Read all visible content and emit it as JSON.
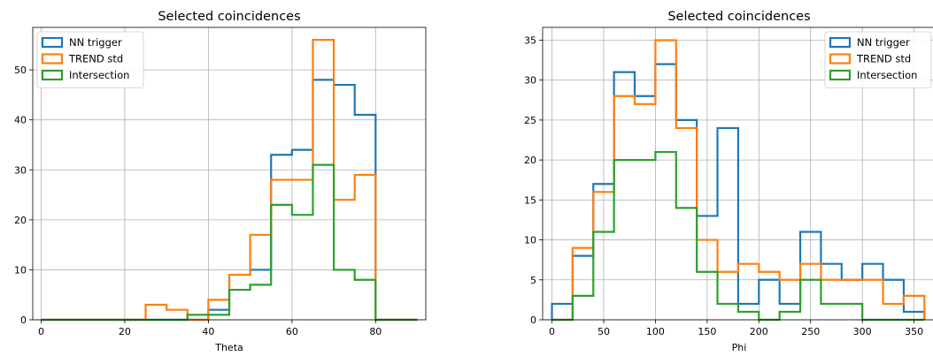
{
  "chart_data": [
    {
      "type": "histogram",
      "title": "Selected coincidences",
      "xlabel": "Theta",
      "ylabel": "",
      "xlim": [
        -2,
        92
      ],
      "ylim": [
        0,
        58.5
      ],
      "xticks": [
        0,
        20,
        40,
        60,
        80
      ],
      "yticks": [
        0,
        10,
        20,
        30,
        40,
        50
      ],
      "grid": true,
      "legend_position": "top-left",
      "bin_edges": [
        0,
        5,
        10,
        15,
        20,
        25,
        30,
        35,
        40,
        45,
        50,
        55,
        60,
        65,
        70,
        75,
        80,
        85,
        90
      ],
      "series": [
        {
          "name": "NN trigger",
          "color": "#1f77b4",
          "values": [
            0,
            0,
            0,
            0,
            0,
            0,
            0,
            0,
            2,
            9,
            10,
            33,
            34,
            48,
            47,
            41,
            0,
            0
          ]
        },
        {
          "name": "TREND std",
          "color": "#ff7f0e",
          "values": [
            0,
            0,
            0,
            0,
            0,
            3,
            2,
            0,
            4,
            9,
            17,
            28,
            28,
            56,
            24,
            29,
            0,
            0
          ]
        },
        {
          "name": "Intersection",
          "color": "#2ca02c",
          "values": [
            0,
            0,
            0,
            0,
            0,
            0,
            0,
            1,
            1,
            6,
            7,
            23,
            21,
            31,
            10,
            8,
            0,
            0
          ]
        }
      ]
    },
    {
      "type": "histogram",
      "title": "Selected coincidences",
      "xlabel": "Phi",
      "ylabel": "",
      "xlim": [
        -9,
        370
      ],
      "ylim": [
        0,
        36.6
      ],
      "xticks": [
        0,
        50,
        100,
        150,
        200,
        250,
        300,
        350
      ],
      "yticks": [
        0,
        5,
        10,
        15,
        20,
        25,
        30,
        35
      ],
      "grid": true,
      "legend_position": "top-right",
      "bin_edges": [
        0,
        20,
        40,
        60,
        80,
        100,
        120,
        140,
        160,
        180,
        200,
        220,
        240,
        260,
        280,
        300,
        320,
        340,
        360
      ],
      "series": [
        {
          "name": "NN trigger",
          "color": "#1f77b4",
          "values": [
            2,
            8,
            17,
            31,
            28,
            32,
            25,
            13,
            24,
            2,
            5,
            2,
            11,
            7,
            5,
            7,
            5,
            1
          ]
        },
        {
          "name": "TREND std",
          "color": "#ff7f0e",
          "values": [
            0,
            9,
            16,
            28,
            27,
            35,
            24,
            10,
            6,
            7,
            6,
            5,
            7,
            5,
            5,
            5,
            2,
            3
          ]
        },
        {
          "name": "Intersection",
          "color": "#2ca02c",
          "values": [
            0,
            3,
            11,
            20,
            20,
            21,
            14,
            6,
            2,
            1,
            0,
            1,
            5,
            2,
            2,
            0,
            0,
            0
          ]
        }
      ]
    }
  ]
}
